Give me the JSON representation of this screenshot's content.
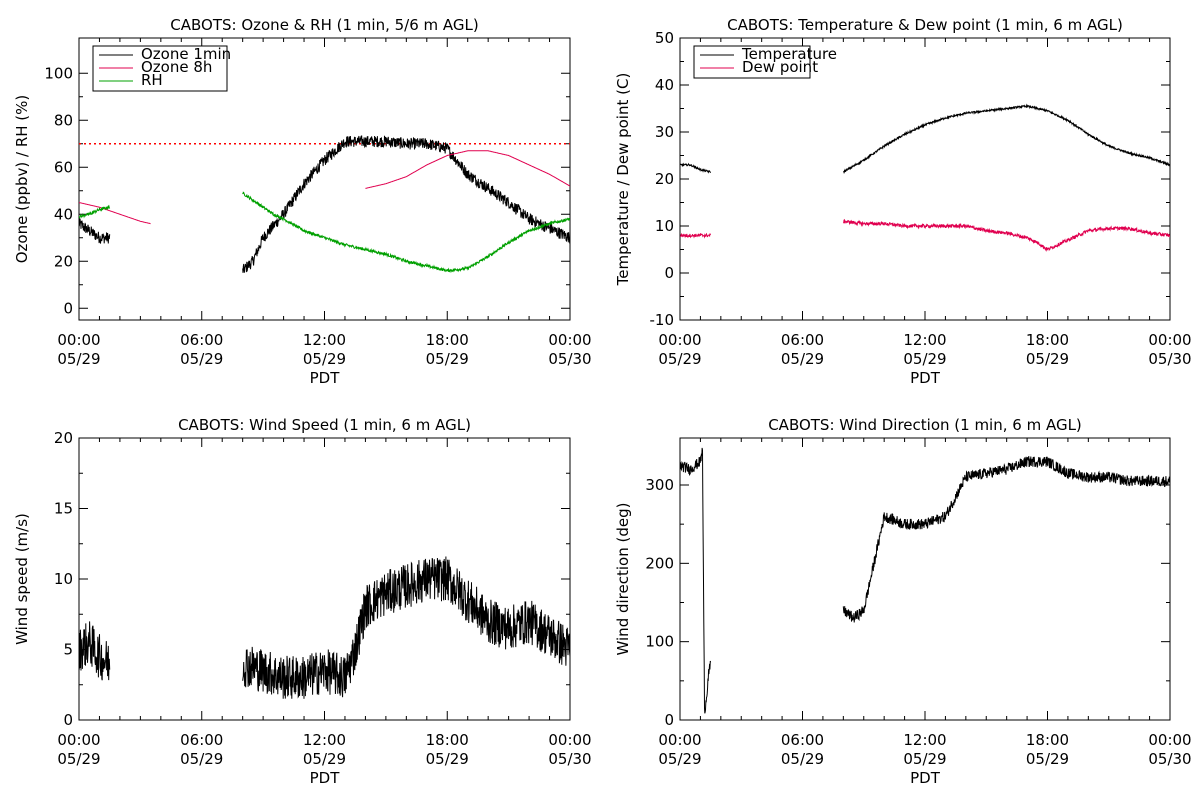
{
  "chart_data": [
    {
      "id": "ozone-rh",
      "type": "line",
      "title": "CABOTS: Ozone & RH (1 min, 5/6 m AGL)",
      "xlabel": "PDT",
      "ylabel": "Ozone (ppbv) / RH (%)",
      "xlim": [
        0,
        24
      ],
      "ylim": [
        -5,
        115
      ],
      "yticks": [
        0,
        20,
        40,
        60,
        80,
        100
      ],
      "xticks": [
        {
          "t": 0,
          "time": "00:00",
          "date": "05/29"
        },
        {
          "t": 6,
          "time": "06:00",
          "date": "05/29"
        },
        {
          "t": 12,
          "time": "12:00",
          "date": "05/29"
        },
        {
          "t": 18,
          "time": "18:00",
          "date": "05/29"
        },
        {
          "t": 24,
          "time": "00:00",
          "date": "05/30"
        }
      ],
      "legend": "top-left",
      "reference_line": {
        "y": 70,
        "color": "#ff0000",
        "style": "dotted"
      },
      "series": [
        {
          "name": "Ozone 1min",
          "color": "#000000",
          "noise": 2.5,
          "segments": [
            {
              "x": [
                0,
                0.5,
                1,
                1.5
              ],
              "y": [
                36,
                33,
                30,
                30
              ]
            },
            {
              "x": [
                8,
                8.5,
                9,
                10,
                11,
                12,
                13,
                14,
                15,
                16,
                17,
                18,
                19,
                20,
                21,
                22,
                23,
                24
              ],
              "y": [
                16,
                20,
                30,
                40,
                53,
                63,
                71,
                71,
                71,
                70,
                70,
                68,
                57,
                51,
                45,
                38,
                34,
                30
              ]
            }
          ]
        },
        {
          "name": "Ozone 8h",
          "color": "#e0004f",
          "noise": 0,
          "segments": [
            {
              "x": [
                0,
                1,
                2,
                3,
                3.5
              ],
              "y": [
                45,
                43,
                40,
                37,
                36
              ]
            },
            {
              "x": [
                14,
                15,
                16,
                17,
                18,
                19,
                20,
                21,
                22,
                23,
                24
              ],
              "y": [
                51,
                53,
                56,
                61,
                65,
                67,
                67,
                65,
                61,
                57,
                52
              ]
            }
          ]
        },
        {
          "name": "RH",
          "color": "#00a000",
          "noise": 0.6,
          "segments": [
            {
              "x": [
                0,
                0.5,
                1,
                1.5
              ],
              "y": [
                39,
                40,
                42,
                43
              ]
            },
            {
              "x": [
                8,
                8.5,
                9,
                9.5,
                10,
                11,
                12,
                13,
                14,
                15,
                16,
                17,
                18,
                19,
                20,
                21,
                22,
                23,
                24
              ],
              "y": [
                49,
                46,
                43,
                40,
                38,
                33,
                30,
                27,
                25,
                23,
                20,
                18,
                16,
                17,
                22,
                28,
                33,
                36,
                38
              ]
            }
          ]
        }
      ]
    },
    {
      "id": "temp-dew",
      "type": "line",
      "title": "CABOTS: Temperature & Dew point (1 min, 6 m AGL)",
      "xlabel": "PDT",
      "ylabel": "Temperature / Dew point (C)",
      "xlim": [
        0,
        24
      ],
      "ylim": [
        -10,
        50
      ],
      "yticks": [
        -10,
        0,
        10,
        20,
        30,
        40,
        50
      ],
      "xticks": [
        {
          "t": 0,
          "time": "00:00",
          "date": "05/29"
        },
        {
          "t": 6,
          "time": "06:00",
          "date": "05/29"
        },
        {
          "t": 12,
          "time": "12:00",
          "date": "05/29"
        },
        {
          "t": 18,
          "time": "18:00",
          "date": "05/29"
        },
        {
          "t": 24,
          "time": "00:00",
          "date": "05/30"
        }
      ],
      "legend": "top-left",
      "series": [
        {
          "name": "Temperature",
          "color": "#000000",
          "noise": 0.2,
          "segments": [
            {
              "x": [
                0,
                0.5,
                1,
                1.5
              ],
              "y": [
                23,
                23,
                22,
                21.5
              ]
            },
            {
              "x": [
                8,
                9,
                10,
                11,
                12,
                13,
                14,
                15,
                16,
                17,
                18,
                19,
                20,
                21,
                22,
                23,
                24
              ],
              "y": [
                21.5,
                24,
                27,
                29.5,
                31.5,
                33,
                34,
                34.5,
                35,
                35.5,
                34.5,
                32.5,
                29.5,
                27,
                25.5,
                24.5,
                23
              ]
            }
          ]
        },
        {
          "name": "Dew point",
          "color": "#e0004f",
          "noise": 0.35,
          "segments": [
            {
              "x": [
                0,
                1.5
              ],
              "y": [
                8,
                8
              ]
            },
            {
              "x": [
                8,
                9,
                10,
                11,
                12,
                13,
                14,
                15,
                16,
                17,
                17.5,
                18,
                18.5,
                19,
                20,
                21,
                22,
                23,
                24
              ],
              "y": [
                11,
                10.5,
                10.5,
                10,
                10,
                10,
                10,
                9,
                8.5,
                7.5,
                6.5,
                5,
                6,
                7,
                9,
                9.5,
                9.5,
                8.5,
                8
              ]
            }
          ]
        }
      ]
    },
    {
      "id": "wind-speed",
      "type": "line",
      "title": "CABOTS: Wind Speed (1 min, 6 m AGL)",
      "xlabel": "PDT",
      "ylabel": "Wind speed (m/s)",
      "xlim": [
        0,
        24
      ],
      "ylim": [
        0,
        20
      ],
      "yticks": [
        0,
        5,
        10,
        15,
        20
      ],
      "xticks": [
        {
          "t": 0,
          "time": "00:00",
          "date": "05/29"
        },
        {
          "t": 6,
          "time": "06:00",
          "date": "05/29"
        },
        {
          "t": 12,
          "time": "12:00",
          "date": "05/29"
        },
        {
          "t": 18,
          "time": "18:00",
          "date": "05/29"
        },
        {
          "t": 24,
          "time": "00:00",
          "date": "05/30"
        }
      ],
      "legend": "none",
      "series": [
        {
          "color": "#000000",
          "noise": 1.6,
          "segments": [
            {
              "x": [
                0,
                0.5,
                1,
                1.5
              ],
              "y": [
                5,
                5.5,
                4.5,
                4
              ]
            },
            {
              "x": [
                8,
                9,
                10,
                11,
                12,
                13,
                13.5,
                14,
                15,
                16,
                17,
                18,
                19,
                20,
                21,
                22,
                23,
                24
              ],
              "y": [
                4,
                3.5,
                3,
                3,
                3.5,
                3,
                5,
                8,
                9,
                9.5,
                10,
                10,
                8.5,
                7,
                6.5,
                7,
                6,
                5
              ]
            }
          ]
        }
      ]
    },
    {
      "id": "wind-direction",
      "type": "line",
      "title": "CABOTS: Wind Direction (1 min, 6 m AGL)",
      "xlabel": "PDT",
      "ylabel": "Wind direction (deg)",
      "xlim": [
        0,
        24
      ],
      "ylim": [
        0,
        360
      ],
      "yticks": [
        0,
        100,
        200,
        300
      ],
      "xticks": [
        {
          "t": 0,
          "time": "00:00",
          "date": "05/29"
        },
        {
          "t": 6,
          "time": "06:00",
          "date": "05/29"
        },
        {
          "t": 12,
          "time": "12:00",
          "date": "05/29"
        },
        {
          "t": 18,
          "time": "18:00",
          "date": "05/29"
        },
        {
          "t": 24,
          "time": "00:00",
          "date": "05/30"
        }
      ],
      "legend": "none",
      "series": [
        {
          "color": "#000000",
          "noise": 7,
          "segments": [
            {
              "x": [
                0,
                0.5,
                1,
                1.1,
                1.2,
                1.3,
                1.4,
                1.5
              ],
              "y": [
                325,
                320,
                330,
                345,
                10,
                30,
                60,
                70
              ]
            },
            {
              "x": [
                8,
                8.5,
                9,
                9.5,
                10,
                11,
                12,
                13,
                14,
                15,
                16,
                17,
                18,
                19,
                20,
                21,
                22,
                23,
                24
              ],
              "y": [
                140,
                130,
                140,
                200,
                260,
                250,
                250,
                260,
                310,
                315,
                320,
                330,
                330,
                315,
                310,
                310,
                305,
                305,
                305
              ]
            }
          ]
        }
      ]
    }
  ]
}
